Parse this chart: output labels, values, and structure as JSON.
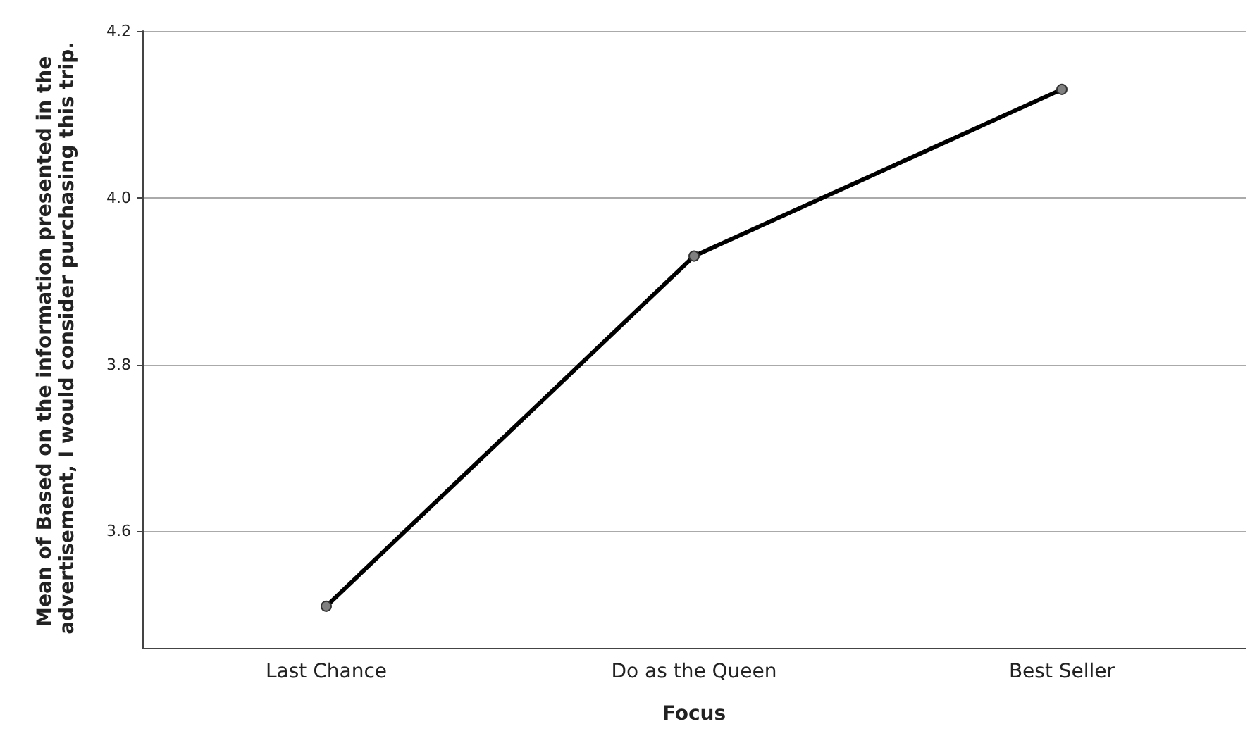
{
  "chart_data": {
    "type": "line",
    "xlabel": "Focus",
    "ylabel": "Mean of Based on the information presented in the advertisement, I would consider purchasing this trip.",
    "categories": [
      "Last Chance",
      "Do as the Queen",
      "Best Seller"
    ],
    "series": [
      {
        "color": "#000000",
        "values": [
          3.51,
          3.93,
          4.13
        ]
      }
    ],
    "ylim": [
      3.46,
      4.2
    ],
    "yticks": [
      3.6,
      3.8,
      {
        "value": 4,
        "label": "4.0"
      },
      4.2
    ],
    "grid": "y",
    "marker": "circle",
    "line_style": "solid"
  }
}
